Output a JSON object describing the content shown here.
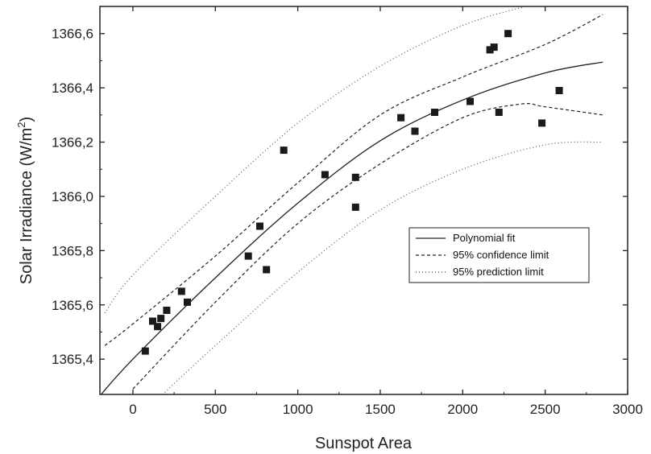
{
  "chart_data": {
    "type": "scatter",
    "xlabel": "Sunspot Area",
    "ylabel": "Solar Irradiance (W/m",
    "ylabel_sup": "2",
    "ylabel_end": ")",
    "xlim": [
      -200,
      3000
    ],
    "ylim": [
      1365.27,
      1366.7
    ],
    "x_ticks": [
      0,
      500,
      1000,
      1500,
      2000,
      2500,
      3000
    ],
    "x_tick_labels": [
      "0",
      "500",
      "1000",
      "1500",
      "2000",
      "2500",
      "3000"
    ],
    "y_ticks": [
      1365.4,
      1365.6,
      1365.8,
      1366.0,
      1366.2,
      1366.4,
      1366.6
    ],
    "y_tick_labels": [
      "1365,4",
      "1365,6",
      "1365,8",
      "1366,0",
      "1366,2",
      "1366,4",
      "1366,6"
    ],
    "grid": false,
    "legend_position": "center-right",
    "legend": [
      {
        "label": "Polynomial fit",
        "style": "solid"
      },
      {
        "label": "95% confidence limit",
        "style": "dashed"
      },
      {
        "label": "95% prediction limit",
        "style": "dotted"
      }
    ],
    "points": {
      "x": [
        75,
        120,
        150,
        170,
        205,
        295,
        330,
        700,
        770,
        810,
        915,
        1165,
        1350,
        1350,
        1625,
        1710,
        1830,
        2045,
        2165,
        2190,
        2220,
        2275,
        2480,
        2585
      ],
      "y": [
        1365.43,
        1365.54,
        1365.52,
        1365.55,
        1365.58,
        1365.65,
        1365.61,
        1365.78,
        1365.89,
        1365.73,
        1366.17,
        1366.08,
        1365.96,
        1366.07,
        1366.29,
        1366.24,
        1366.31,
        1366.35,
        1366.54,
        1366.55,
        1366.31,
        1366.6,
        1366.27,
        1366.39
      ]
    },
    "fit_curve": {
      "x": [
        -200,
        0,
        500,
        1000,
        1500,
        2000,
        2500,
        2850
      ],
      "y": [
        1365.265,
        1365.4,
        1365.7,
        1365.975,
        1366.205,
        1366.355,
        1366.455,
        1366.495
      ]
    },
    "confidence_upper": {
      "x": [
        -170,
        0,
        500,
        1000,
        1500,
        2000,
        2500,
        2850
      ],
      "y": [
        1365.45,
        1365.53,
        1365.78,
        1366.05,
        1366.3,
        1366.44,
        1366.56,
        1366.67
      ]
    },
    "confidence_lower": {
      "x": [
        0,
        500,
        1000,
        1500,
        2000,
        2350,
        2500,
        2850
      ],
      "y": [
        1365.29,
        1365.61,
        1365.9,
        1366.12,
        1366.29,
        1366.34,
        1366.33,
        1366.3
      ]
    },
    "prediction_upper": {
      "x": [
        -170,
        0,
        500,
        1000,
        1500,
        2000,
        2380
      ],
      "y": [
        1365.57,
        1365.71,
        1366.0,
        1366.27,
        1366.48,
        1366.63,
        1366.7
      ]
    },
    "prediction_lower": {
      "x": [
        180,
        500,
        1000,
        1500,
        2000,
        2500,
        2850
      ],
      "y": [
        1365.27,
        1365.45,
        1365.72,
        1365.95,
        1366.1,
        1366.19,
        1366.2
      ]
    }
  }
}
